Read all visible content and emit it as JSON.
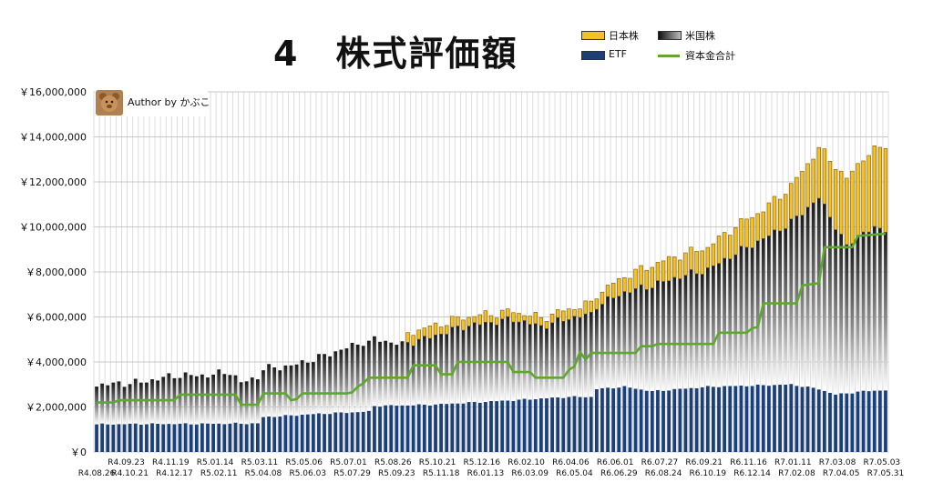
{
  "title": "4　株式評価額",
  "author": "Author by かぶこ",
  "colors": {
    "jp": "#f5c122",
    "etf": "#1b3f77",
    "capital": "#5ea82e",
    "grid": "#c8c8c8"
  },
  "chart_data": {
    "type": "bar",
    "stacked": true,
    "grid": true,
    "legend": "top-right",
    "ylim": [
      0,
      16000000
    ],
    "yticks": [
      0,
      2000000,
      4000000,
      6000000,
      8000000,
      10000000,
      12000000,
      14000000,
      16000000
    ],
    "ytick_labels": [
      "￥0",
      "￥2,000,000",
      "￥4,000,000",
      "￥6,000,000",
      "￥8,000,000",
      "￥10,000,000",
      "￥12,000,000",
      "￥14,000,000",
      "￥16,000,000"
    ],
    "xtick_top": [
      {
        "i": 2,
        "label": "R4.09.23"
      },
      {
        "i": 10,
        "label": "R4.11.19"
      },
      {
        "i": 18,
        "label": "R5.01.14"
      },
      {
        "i": 26,
        "label": "R5.03.11"
      },
      {
        "i": 34,
        "label": "R5.05.06"
      },
      {
        "i": 42,
        "label": "R5.07.01"
      },
      {
        "i": 50,
        "label": "R5.08.26"
      },
      {
        "i": 58,
        "label": "R5.10.21"
      },
      {
        "i": 66,
        "label": "R5.12.16"
      },
      {
        "i": 74,
        "label": "R6.02.10"
      },
      {
        "i": 82,
        "label": "R6.04.06"
      },
      {
        "i": 90,
        "label": "R6.06.01"
      },
      {
        "i": 98,
        "label": "R6.07.27"
      },
      {
        "i": 106,
        "label": "R6.09.21"
      },
      {
        "i": 114,
        "label": "R6.11.16"
      },
      {
        "i": 122,
        "label": "R7.01.11"
      },
      {
        "i": 130,
        "label": "R7.03.08"
      },
      {
        "i": 138,
        "label": "R7.05.03"
      }
    ],
    "xtick_bottom": [
      {
        "i": 0,
        "label": "R4.08.26"
      },
      {
        "i": 6,
        "label": "R4.10.21"
      },
      {
        "i": 14,
        "label": "R4.12.17"
      },
      {
        "i": 22,
        "label": "R5.02.11"
      },
      {
        "i": 30,
        "label": "R5.04.08"
      },
      {
        "i": 38,
        "label": "R5.06.03"
      },
      {
        "i": 46,
        "label": "R5.07.29"
      },
      {
        "i": 54,
        "label": "R5.09.23"
      },
      {
        "i": 62,
        "label": "R5.11.18"
      },
      {
        "i": 70,
        "label": "R6.01.13"
      },
      {
        "i": 78,
        "label": "R6.03.09"
      },
      {
        "i": 86,
        "label": "R6.05.04"
      },
      {
        "i": 94,
        "label": "R6.06.29"
      },
      {
        "i": 102,
        "label": "R6.08.24"
      },
      {
        "i": 110,
        "label": "R6.10.19"
      },
      {
        "i": 118,
        "label": "R6.12.14"
      },
      {
        "i": 126,
        "label": "R7.02.08"
      },
      {
        "i": 134,
        "label": "R7.04.05"
      },
      {
        "i": 142,
        "label": "R7.05.31"
      }
    ],
    "x_count": 143,
    "series": [
      {
        "name": "日本株",
        "kind": "bar",
        "color": "#f5c122",
        "anchors": [
          [
            0,
            0
          ],
          [
            55,
            0
          ],
          [
            56,
            450000
          ],
          [
            60,
            450000
          ],
          [
            67,
            400000
          ],
          [
            75,
            350000
          ],
          [
            85,
            400000
          ],
          [
            90,
            500000
          ],
          [
            100,
            900000
          ],
          [
            110,
            1000000
          ],
          [
            115,
            1200000
          ],
          [
            120,
            1300000
          ],
          [
            125,
            1600000
          ],
          [
            130,
            2200000
          ],
          [
            135,
            3000000
          ],
          [
            142,
            3700000
          ]
        ]
      },
      {
        "name": "米国株",
        "kind": "bar",
        "color": "#555555",
        "anchors": [
          [
            0,
            1750000
          ],
          [
            8,
            1850000
          ],
          [
            14,
            2150000
          ],
          [
            20,
            2150000
          ],
          [
            24,
            2300000
          ],
          [
            26,
            1800000
          ],
          [
            30,
            2150000
          ],
          [
            35,
            2200000
          ],
          [
            40,
            2500000
          ],
          [
            48,
            3100000
          ],
          [
            55,
            2700000
          ],
          [
            60,
            3000000
          ],
          [
            66,
            3400000
          ],
          [
            75,
            3600000
          ],
          [
            80,
            3200000
          ],
          [
            85,
            3500000
          ],
          [
            90,
            3700000
          ],
          [
            95,
            4200000
          ],
          [
            100,
            4700000
          ],
          [
            105,
            5000000
          ],
          [
            110,
            5200000
          ],
          [
            115,
            5900000
          ],
          [
            120,
            6500000
          ],
          [
            125,
            7200000
          ],
          [
            130,
            8500000
          ],
          [
            133,
            7500000
          ],
          [
            135,
            6500000
          ],
          [
            138,
            7100000
          ],
          [
            142,
            7200000
          ]
        ]
      },
      {
        "name": "ETF",
        "kind": "bar",
        "color": "#1b3f77",
        "anchors": [
          [
            0,
            1230000
          ],
          [
            8,
            1250000
          ],
          [
            16,
            1250000
          ],
          [
            26,
            1270000
          ],
          [
            29,
            1270000
          ],
          [
            30,
            1550000
          ],
          [
            40,
            1700000
          ],
          [
            49,
            1800000
          ],
          [
            50,
            2050000
          ],
          [
            60,
            2100000
          ],
          [
            75,
            2300000
          ],
          [
            85,
            2450000
          ],
          [
            89,
            2450000
          ],
          [
            90,
            2800000
          ],
          [
            95,
            2900000
          ],
          [
            100,
            2700000
          ],
          [
            110,
            2900000
          ],
          [
            125,
            3000000
          ],
          [
            130,
            2800000
          ],
          [
            133,
            2550000
          ],
          [
            138,
            2700000
          ],
          [
            142,
            2750000
          ]
        ]
      },
      {
        "name": "資本金合計",
        "kind": "line",
        "color": "#5ea82e",
        "anchors": [
          [
            0,
            2200000
          ],
          [
            3,
            2200000
          ],
          [
            4,
            2300000
          ],
          [
            14,
            2300000
          ],
          [
            15,
            2550000
          ],
          [
            25,
            2550000
          ],
          [
            26,
            2100000
          ],
          [
            29,
            2100000
          ],
          [
            30,
            2600000
          ],
          [
            34,
            2600000
          ],
          [
            35,
            2300000
          ],
          [
            36,
            2350000
          ],
          [
            37,
            2600000
          ],
          [
            45,
            2600000
          ],
          [
            46,
            2650000
          ],
          [
            47,
            2900000
          ],
          [
            48,
            3050000
          ],
          [
            49,
            3300000
          ],
          [
            56,
            3300000
          ],
          [
            57,
            3850000
          ],
          [
            61,
            3850000
          ],
          [
            62,
            3450000
          ],
          [
            64,
            3450000
          ],
          [
            65,
            4000000
          ],
          [
            74,
            4000000
          ],
          [
            75,
            3550000
          ],
          [
            78,
            3550000
          ],
          [
            79,
            3300000
          ],
          [
            84,
            3300000
          ],
          [
            85,
            3650000
          ],
          [
            86,
            3800000
          ],
          [
            87,
            4450000
          ],
          [
            88,
            4100000
          ],
          [
            89,
            4400000
          ],
          [
            97,
            4400000
          ],
          [
            98,
            4700000
          ],
          [
            100,
            4700000
          ],
          [
            101,
            4800000
          ],
          [
            111,
            4800000
          ],
          [
            112,
            5300000
          ],
          [
            117,
            5300000
          ],
          [
            118,
            5500000
          ],
          [
            119,
            5550000
          ],
          [
            120,
            6600000
          ],
          [
            126,
            6600000
          ],
          [
            127,
            7400000
          ],
          [
            130,
            7500000
          ],
          [
            131,
            9100000
          ],
          [
            136,
            9100000
          ],
          [
            137,
            9600000
          ],
          [
            142,
            9700000
          ]
        ]
      }
    ]
  }
}
